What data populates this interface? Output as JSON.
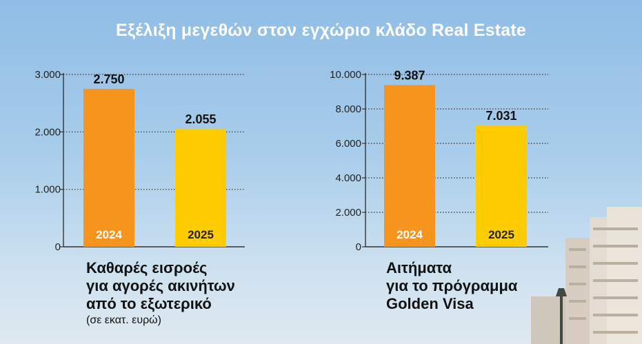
{
  "title": "Εξέλιξη μεγεθών στον εγχώριο κλάδο Real Estate",
  "colors": {
    "bar_2024": "#f7941d",
    "bar_2025": "#ffcc00",
    "axis": "#333333"
  },
  "chart_data": [
    {
      "type": "bar",
      "categories": [
        "2024",
        "2025"
      ],
      "values": [
        2750,
        2055
      ],
      "value_labels": [
        "2.750",
        "2.055"
      ],
      "yticks": [
        "0",
        "1.000",
        "2.000",
        "3.000"
      ],
      "ylim": [
        0,
        3000
      ],
      "grid": true,
      "caption": [
        "Καθαρές εισροές",
        "για αγορές ακινήτων",
        "από το εξωτερικό"
      ],
      "caption_unit": "(σε εκατ. ευρώ)"
    },
    {
      "type": "bar",
      "categories": [
        "2024",
        "2025"
      ],
      "values": [
        9387,
        7031
      ],
      "value_labels": [
        "9.387",
        "7.031"
      ],
      "yticks": [
        "0",
        "2.000",
        "4.000",
        "6.000",
        "8.000",
        "10.000"
      ],
      "ylim": [
        0,
        10000
      ],
      "grid": true,
      "caption": [
        "Αιτήματα",
        "για το πρόγραμμα",
        "Golden Visa"
      ],
      "caption_unit": ""
    }
  ]
}
